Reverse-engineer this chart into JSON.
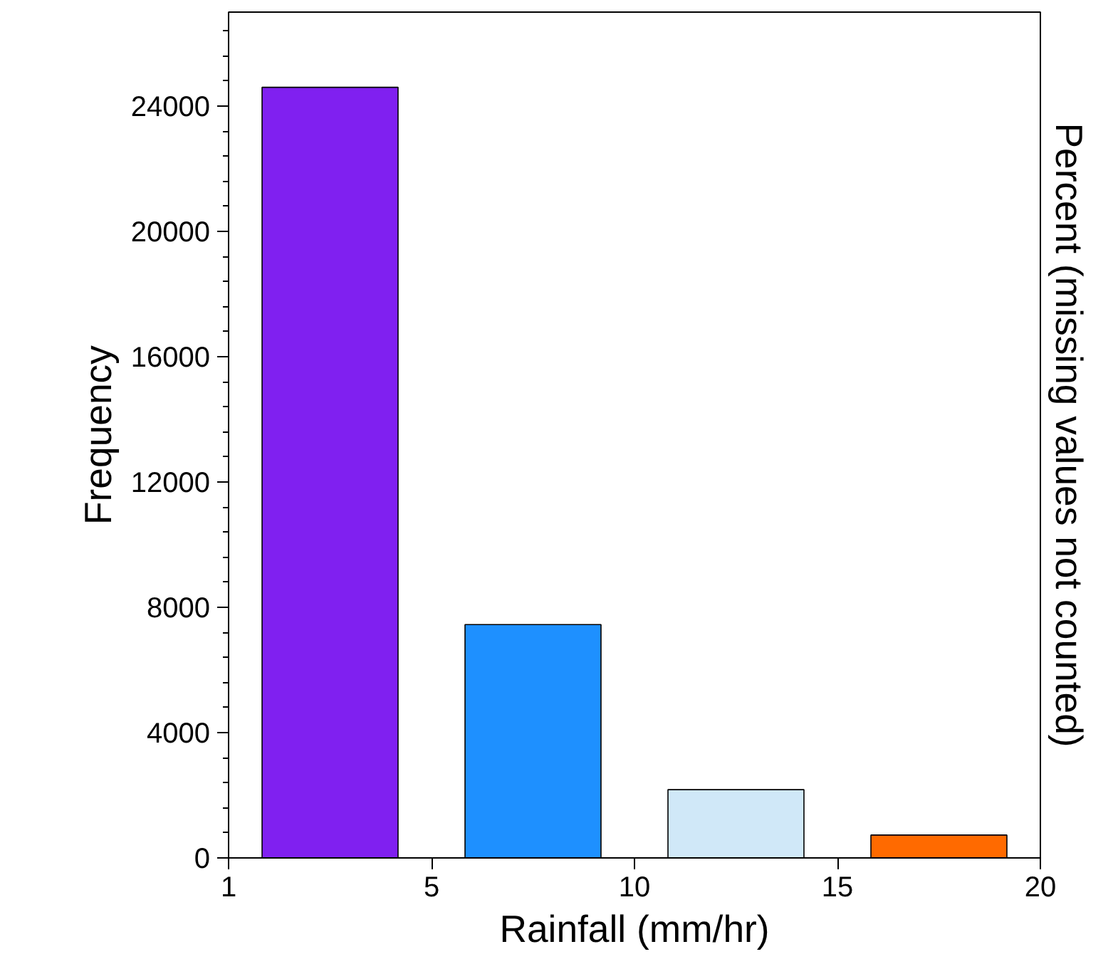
{
  "chart_data": {
    "type": "bar",
    "xlabel": "Rainfall (mm/hr)",
    "ylabel": "Frequency",
    "y2label": "Percent (missing values not counted)",
    "categories": [
      null,
      null,
      null,
      null
    ],
    "values": [
      24600,
      7450,
      2180,
      730
    ],
    "colors": [
      "#8020f0",
      "#1e90ff",
      "#d0e8f8",
      "#ff6a00"
    ],
    "annotations": [
      "1",
      "5",
      "10",
      "15",
      "20"
    ],
    "ylim": [
      0,
      27000
    ],
    "yticks": [
      0,
      4000,
      8000,
      12000,
      16000,
      20000,
      24000
    ]
  }
}
